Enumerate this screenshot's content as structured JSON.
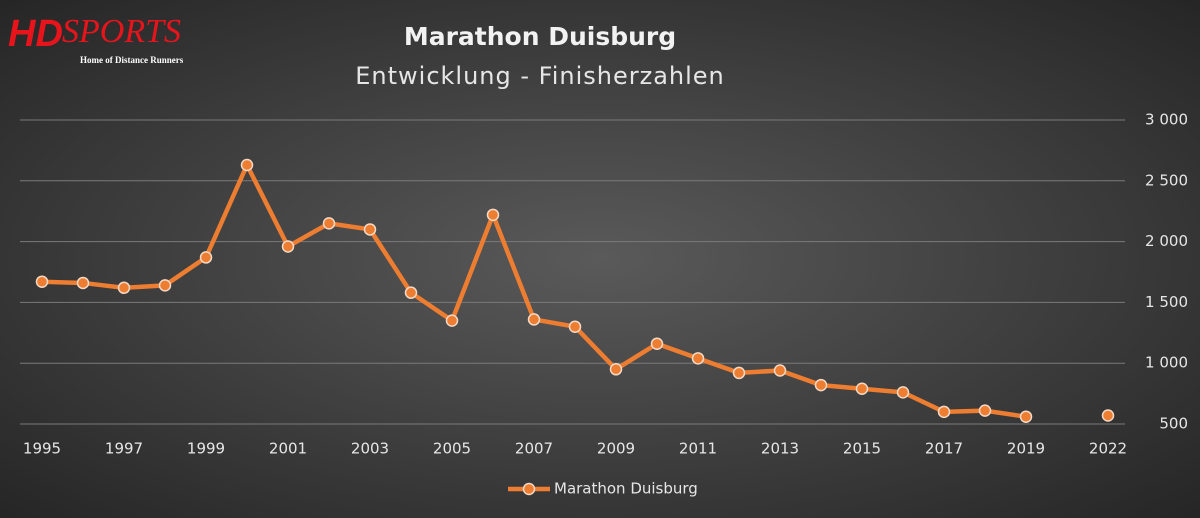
{
  "logo": {
    "brand_a": "HD",
    "brand_b": "SPORTS",
    "tagline": "Home of Distance Runners"
  },
  "chart_data": {
    "type": "line",
    "title": "Marathon Duisburg",
    "subtitle": "Entwicklung - Finisherzahlen",
    "categories": [
      "1995",
      null,
      "1997",
      null,
      "1999",
      null,
      "2001",
      null,
      "2003",
      null,
      "2005",
      null,
      "2007",
      null,
      "2009",
      null,
      "2011",
      null,
      "2013",
      null,
      "2015",
      null,
      "2017",
      null,
      "2019",
      null,
      "2022"
    ],
    "series": [
      {
        "name": "Marathon Duisburg",
        "color": "#ed7d31",
        "values": [
          1670,
          1660,
          1620,
          1640,
          1870,
          2630,
          1960,
          2150,
          2100,
          1580,
          1350,
          2220,
          1360,
          1300,
          950,
          1160,
          1040,
          920,
          940,
          820,
          790,
          760,
          600,
          610,
          560,
          null,
          570
        ]
      }
    ],
    "ylim": [
      500,
      3000
    ],
    "yticks": [
      500,
      {
        "value": 1000,
        "label": "1 000"
      },
      {
        "value": 1500,
        "label": "1 500"
      },
      {
        "value": 2000,
        "label": "2 000"
      },
      {
        "value": 2500,
        "label": "2 500"
      },
      {
        "value": 3000,
        "label": "3 000"
      }
    ],
    "grid": true,
    "legend": "bottom"
  }
}
